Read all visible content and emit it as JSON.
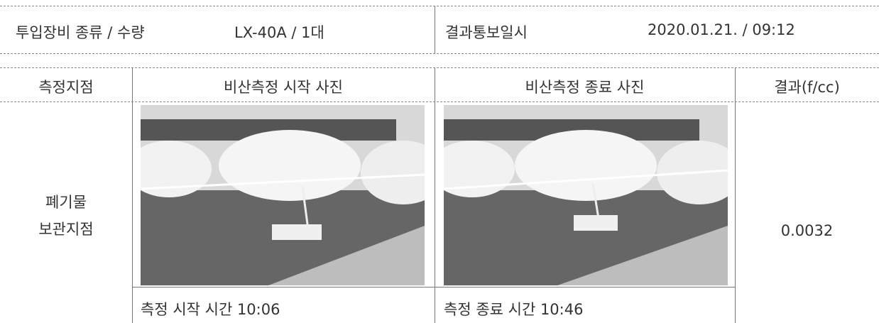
{
  "info": {
    "equipment_label": "투입장비 종류 / 수량",
    "equipment_value": "LX-40A / 1대",
    "report_label": "결과통보일시",
    "report_value": "2020.01.21. / 09:12"
  },
  "table": {
    "headers": [
      "측정지점",
      "비산측정 시작 사진",
      "비산측정 종료 사진",
      "결과(f/cc)"
    ],
    "rows": [
      {
        "location": [
          "폐기물",
          "보관지점"
        ],
        "start_time": "측정 시작 시간 10:06",
        "end_time": "측정 종료 시간 10:46",
        "result": "0.0032"
      }
    ]
  }
}
